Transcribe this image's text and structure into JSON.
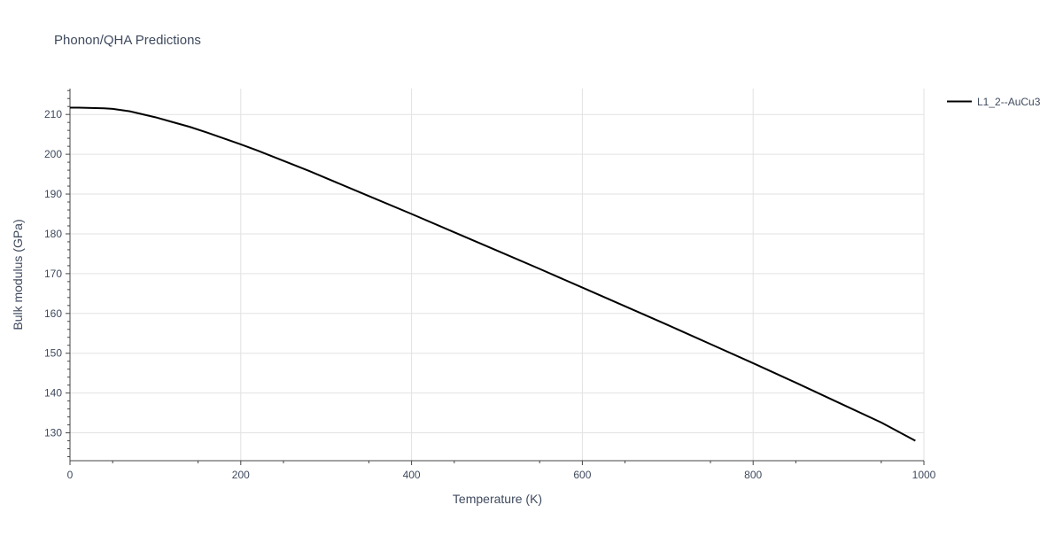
{
  "chart_data": {
    "type": "line",
    "title": "Phonon/QHA Predictions",
    "xlabel": "Temperature (K)",
    "ylabel": "Bulk modulus (GPa)",
    "xlim": [
      0,
      1000
    ],
    "ylim": [
      123,
      216.5
    ],
    "xticks": [
      0,
      200,
      400,
      600,
      800,
      1000
    ],
    "yticks": [
      130,
      140,
      150,
      160,
      170,
      180,
      190,
      200,
      210
    ],
    "grid": true,
    "legend_position": "top-right",
    "series": [
      {
        "name": "L1_2--AuCu3",
        "color": "#000000",
        "x": [
          0,
          10,
          20,
          30,
          40,
          50,
          60,
          70,
          80,
          90,
          100,
          120,
          140,
          160,
          180,
          200,
          220,
          240,
          260,
          280,
          300,
          350,
          400,
          450,
          500,
          550,
          600,
          650,
          700,
          750,
          800,
          850,
          900,
          950,
          990
        ],
        "y": [
          211.7,
          211.7,
          211.65,
          211.6,
          211.55,
          211.4,
          211.1,
          210.8,
          210.3,
          209.8,
          209.3,
          208.1,
          206.9,
          205.5,
          204.0,
          202.5,
          200.9,
          199.2,
          197.5,
          195.8,
          194.0,
          189.5,
          185.0,
          180.4,
          175.8,
          171.2,
          166.5,
          161.8,
          157.1,
          152.3,
          147.5,
          142.6,
          137.6,
          132.6,
          128.0
        ]
      }
    ]
  }
}
